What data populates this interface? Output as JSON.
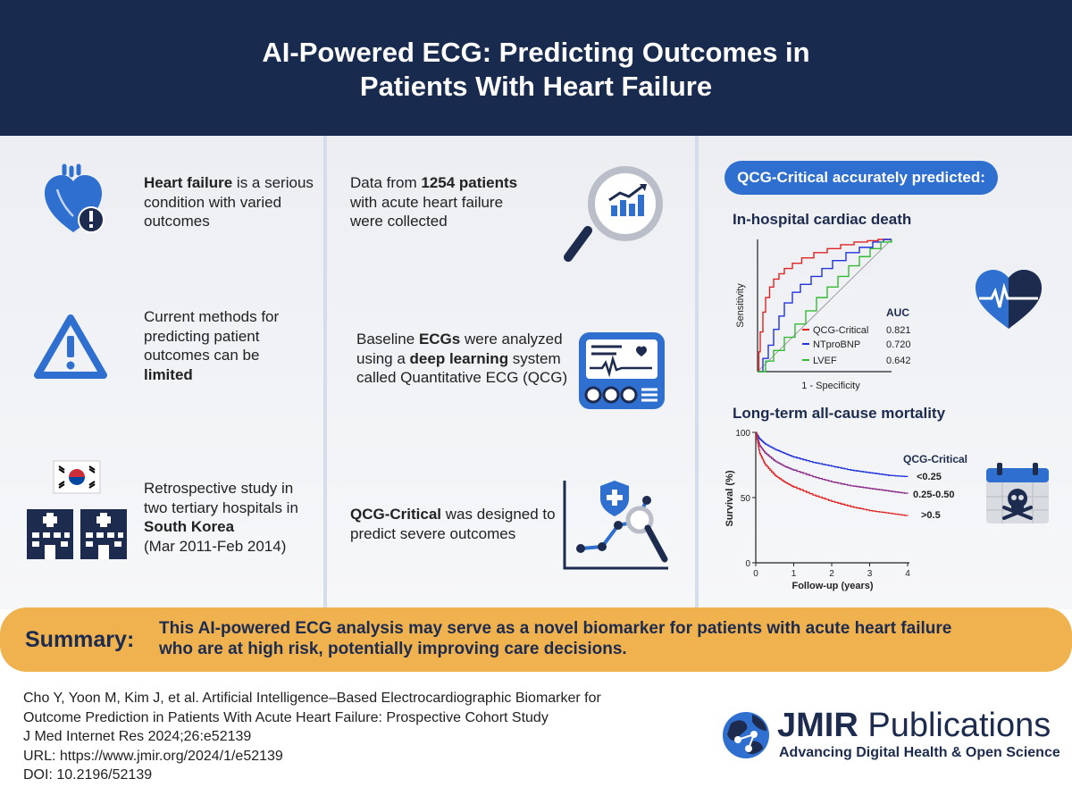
{
  "header": {
    "title_line1": "AI-Powered ECG: Predicting Outcomes in",
    "title_line2": "Patients With Heart Failure"
  },
  "col1": {
    "item1": {
      "bold": "Heart failure",
      "rest": " is a serious condition with varied outcomes"
    },
    "item2": {
      "text": "Current methods for predicting patient outcomes can be ",
      "bold": "limited"
    },
    "item3": {
      "text1": "Retrospective study in two tertiary hospitals in ",
      "bold": "South Korea",
      "text2": "(Mar 2011-Feb 2014)"
    }
  },
  "col2": {
    "item1": {
      "text1": "Data from ",
      "bold": "1254 patients",
      "text2": " with acute heart failure were collected"
    },
    "item2": {
      "text1": "Baseline ",
      "bold1": "ECGs",
      "text2": " were analyzed using a ",
      "bold2": "deep learning",
      "text3": " system called Quantitative ECG (QCG)"
    },
    "item3": {
      "bold": "QCG-Critical",
      "text": " was designed to predict severe outcomes"
    }
  },
  "col3": {
    "pill": "QCG-Critical accurately predicted:",
    "roc_title": "In-hospital cardiac death",
    "km_title": "Long-term all-cause mortality"
  },
  "colors": {
    "navy": "#182a4e",
    "blue": "#2f6fcf",
    "orange": "#f0b24f",
    "red": "#e02424",
    "nt": "#2233dd",
    "lvef": "#33bb33",
    "purple": "#8a2a8a"
  },
  "chart_data": [
    {
      "type": "line",
      "title": "In-hospital cardiac death",
      "xlabel": "1 - Specificity",
      "ylabel": "Sensitivity",
      "xlim": [
        0,
        1
      ],
      "ylim": [
        0,
        1
      ],
      "legend_header": "AUC",
      "series": [
        {
          "name": "QCG-Critical",
          "auc": "0.821",
          "color": "#e02424",
          "x": [
            0,
            0.01,
            0.02,
            0.04,
            0.06,
            0.09,
            0.12,
            0.16,
            0.2,
            0.26,
            0.33,
            0.42,
            0.52,
            0.62,
            0.72,
            0.82,
            0.9,
            1
          ],
          "y": [
            0,
            0.15,
            0.3,
            0.45,
            0.56,
            0.64,
            0.7,
            0.74,
            0.78,
            0.82,
            0.86,
            0.9,
            0.93,
            0.96,
            0.98,
            0.99,
            1,
            1
          ]
        },
        {
          "name": "NTproBNP",
          "auc": "0.720",
          "color": "#2233dd",
          "x": [
            0,
            0.04,
            0.08,
            0.12,
            0.16,
            0.2,
            0.26,
            0.32,
            0.4,
            0.48,
            0.56,
            0.66,
            0.76,
            0.86,
            0.94,
            1
          ],
          "y": [
            0,
            0.1,
            0.2,
            0.32,
            0.42,
            0.52,
            0.6,
            0.66,
            0.72,
            0.78,
            0.84,
            0.9,
            0.94,
            0.98,
            1,
            1
          ]
        },
        {
          "name": "LVEF",
          "auc": "0.642",
          "color": "#33bb33",
          "x": [
            0,
            0.06,
            0.12,
            0.2,
            0.28,
            0.36,
            0.44,
            0.52,
            0.6,
            0.68,
            0.76,
            0.84,
            0.92,
            1
          ],
          "y": [
            0,
            0.08,
            0.16,
            0.26,
            0.36,
            0.46,
            0.56,
            0.64,
            0.72,
            0.8,
            0.87,
            0.93,
            0.98,
            1
          ]
        }
      ]
    },
    {
      "type": "line",
      "title": "Long-term all-cause mortality",
      "xlabel": "Follow-up (years)",
      "ylabel": "Survival (%)",
      "xlim": [
        0,
        4
      ],
      "ylim": [
        0,
        100
      ],
      "xticks": [
        "0",
        "1",
        "2",
        "3",
        "4"
      ],
      "yticks": [
        "0",
        "50",
        "100"
      ],
      "legend_header": "QCG-Critical",
      "series": [
        {
          "name": "<0.25",
          "color": "#2233dd",
          "x": [
            0,
            0.1,
            0.25,
            0.5,
            0.75,
            1,
            1.5,
            2,
            2.5,
            3,
            3.5,
            4
          ],
          "y": [
            100,
            95,
            91,
            87,
            84,
            81,
            77,
            74,
            71,
            69,
            67,
            66
          ]
        },
        {
          "name": "0.25-0.50",
          "color": "#8a2a8a",
          "x": [
            0,
            0.1,
            0.25,
            0.5,
            0.75,
            1,
            1.5,
            2,
            2.5,
            3,
            3.5,
            4
          ],
          "y": [
            100,
            90,
            84,
            78,
            74,
            71,
            66,
            62,
            59,
            57,
            55,
            53
          ]
        },
        {
          "name": ">0.5",
          "color": "#e02424",
          "x": [
            0,
            0.1,
            0.25,
            0.5,
            0.75,
            1,
            1.5,
            2,
            2.5,
            3,
            3.5,
            4
          ],
          "y": [
            100,
            84,
            75,
            67,
            62,
            58,
            52,
            47,
            43,
            40,
            38,
            36
          ]
        }
      ]
    }
  ],
  "summary": {
    "label": "Summary:",
    "line1": "This AI-powered ECG analysis may serve as a novel biomarker for patients with acute heart failure",
    "line2": "who are at high risk, potentially improving care decisions."
  },
  "citation": {
    "line1": "Cho Y, Yoon M, Kim J, et al. Artificial Intelligence–Based Electrocardiographic Biomarker for",
    "line2": "Outcome Prediction in Patients With Acute Heart Failure: Prospective Cohort Study",
    "line3": "J Med Internet Res 2024;26:e52139",
    "line4": "URL: https://www.jmir.org/2024/1/e52139",
    "line5": "DOI: 10.2196/52139"
  },
  "logo": {
    "name_bold": "JMIR",
    "name_rest": " Publications",
    "tagline": "Advancing Digital Health & Open Science"
  }
}
